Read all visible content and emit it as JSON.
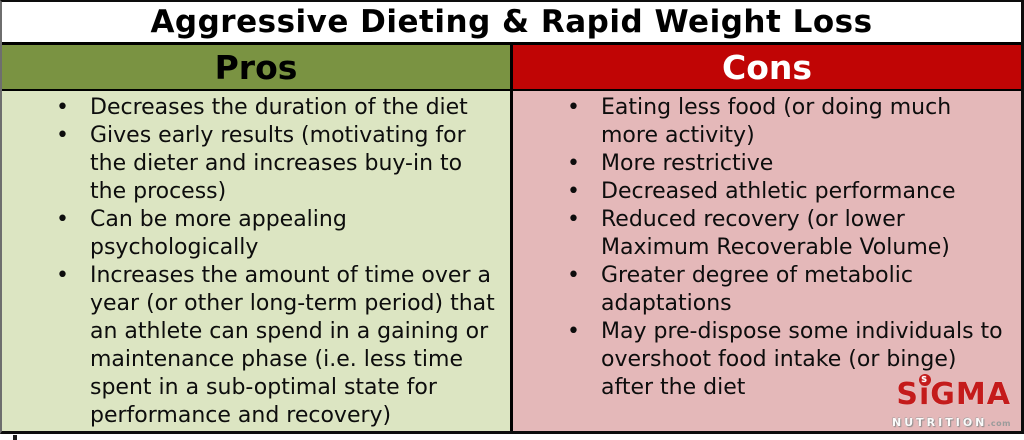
{
  "title": "Aggressive Dieting & Rapid Weight Loss",
  "columns": {
    "pros": {
      "header": "Pros",
      "items": [
        "Decreases the duration of the diet",
        "Gives early results (motivating for the dieter and increases buy-in to the process)",
        "Can be more appealing psychologically",
        "Increases the amount of time over a year (or other long-term period) that an athlete can spend in a gaining or maintenance phase (i.e. less time spent in a sub-optimal state for performance and recovery)"
      ]
    },
    "cons": {
      "header": "Cons",
      "items": [
        "Eating less food (or doing much more activity)",
        "More restrictive",
        "Decreased athletic performance",
        "Reduced recovery (or lower Maximum Recoverable Volume)",
        "Greater degree of metabolic adaptations",
        "May pre-dispose some individuals to overshoot food intake (or binge) after the diet"
      ]
    }
  },
  "logo": {
    "brand_part1": "S",
    "brand_part2": "i",
    "brand_part3": "GMA",
    "dot_letter": "S",
    "subtitle": "NUTRITION",
    "tld": ".com"
  },
  "colors": {
    "pros_header_bg": "#7A9342",
    "cons_header_bg": "#C00505",
    "pros_body_bg": "#DCE5C2",
    "cons_body_bg": "#E4B8B9",
    "border": "#000000",
    "logo_red": "#C41B1B"
  }
}
